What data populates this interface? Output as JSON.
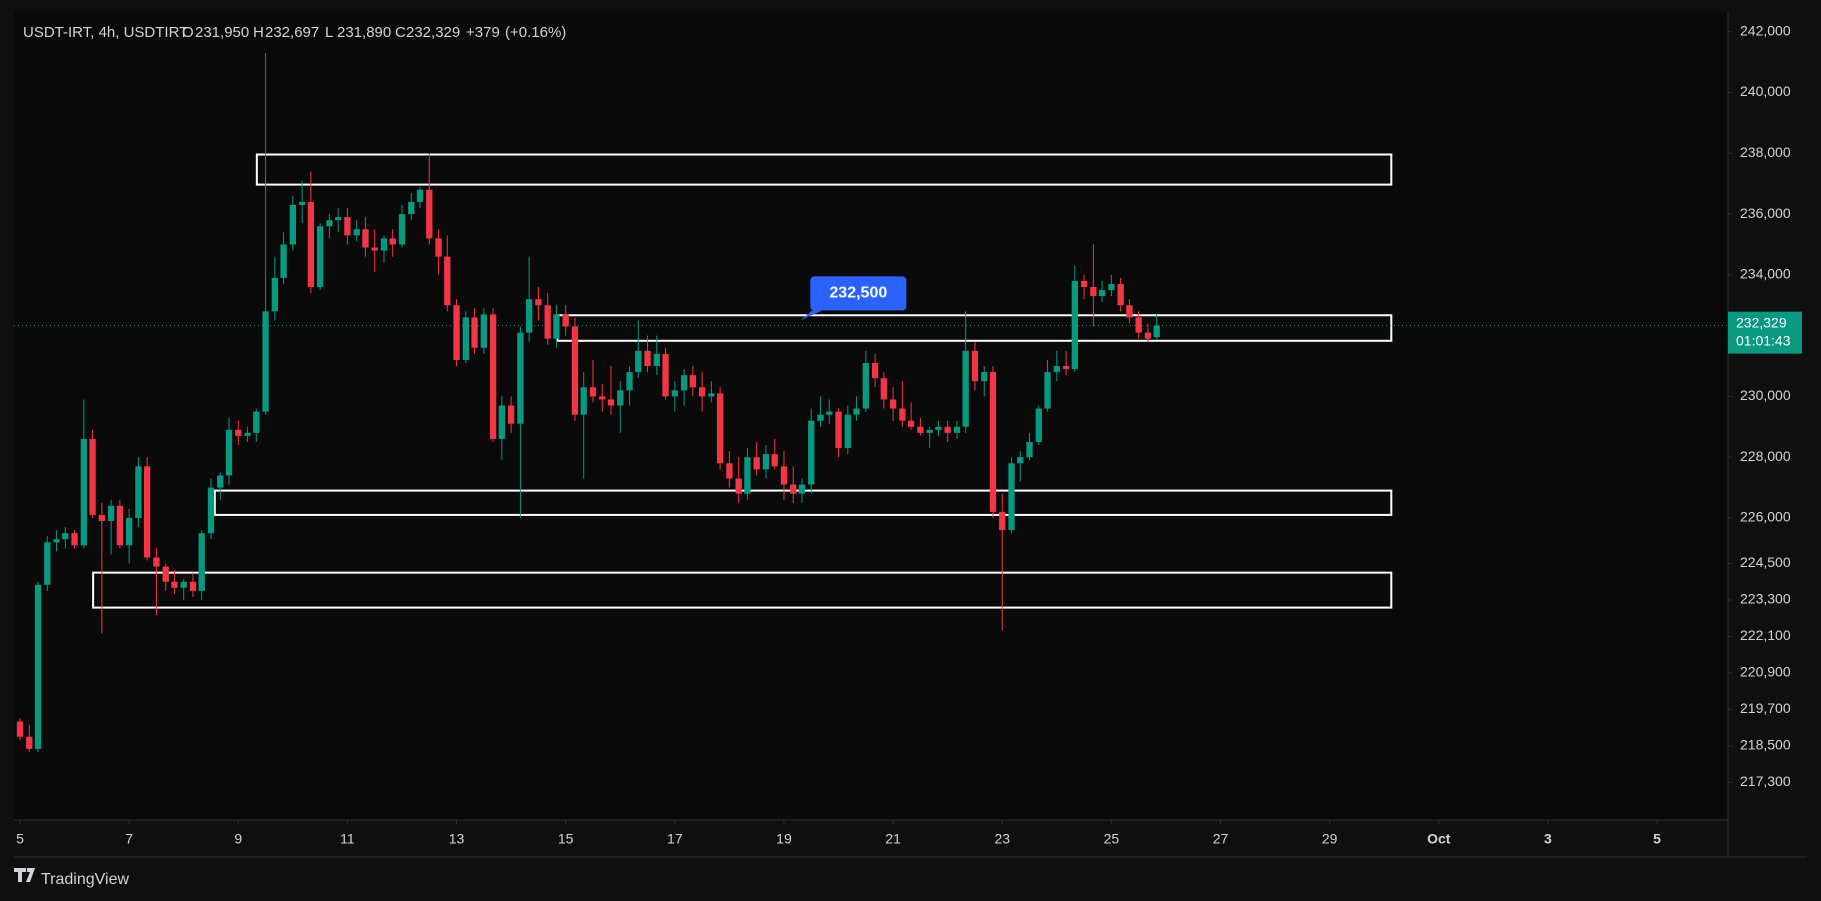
{
  "chart_data": {
    "type": "candlestick",
    "header": {
      "symbol": "USDT-IRT, 4h, USDTIRT",
      "fields": [
        {
          "key": "O",
          "value": 231950,
          "label": "231,950"
        },
        {
          "key": "H",
          "value": 232697,
          "label": "232,697"
        },
        {
          "key": "L",
          "value": 231890,
          "label": "231,890"
        },
        {
          "key": "C",
          "value": 232329,
          "label": "232,329"
        }
      ],
      "change": {
        "value": 379,
        "label": "+379"
      },
      "change_pct": {
        "value": 0.16,
        "label": "(+0.16%)"
      }
    },
    "up_color": "#089981",
    "down_color": "#f23645",
    "x": [
      5,
      5.17,
      5.33,
      5.5,
      5.67,
      5.83,
      6,
      6.17,
      6.33,
      6.5,
      6.67,
      6.83,
      7,
      7.17,
      7.33,
      7.5,
      7.67,
      7.83,
      8,
      8.17,
      8.33,
      8.5,
      8.67,
      8.83,
      9,
      9.17,
      9.33,
      9.5,
      9.67,
      9.83,
      10,
      10.17,
      10.33,
      10.5,
      10.67,
      10.83,
      11,
      11.17,
      11.33,
      11.5,
      11.67,
      11.83,
      12,
      12.17,
      12.33,
      12.5,
      12.67,
      12.83,
      13,
      13.17,
      13.33,
      13.5,
      13.67,
      13.83,
      14,
      14.17,
      14.33,
      14.5,
      14.67,
      14.83,
      15,
      15.17,
      15.33,
      15.5,
      15.67,
      15.83,
      16,
      16.17,
      16.33,
      16.5,
      16.67,
      16.83,
      17,
      17.17,
      17.33,
      17.5,
      17.67,
      17.83,
      18,
      18.17,
      18.33,
      18.5,
      18.67,
      18.83,
      19,
      19.17,
      19.33,
      19.5,
      19.67,
      19.83,
      20,
      20.17,
      20.33,
      20.5,
      20.67,
      20.83,
      21,
      21.17,
      21.33,
      21.5,
      21.67,
      21.83,
      22,
      22.17,
      22.33,
      22.5,
      22.67,
      22.83,
      23,
      23.17,
      23.33,
      23.5,
      23.67,
      23.83,
      24,
      24.17,
      24.33,
      24.5,
      24.67,
      24.83,
      25,
      25.17,
      25.33,
      25.5,
      25.67,
      25.83
    ],
    "open": [
      219300,
      218800,
      218400,
      223800,
      225200,
      225300,
      225500,
      225100,
      228600,
      226100,
      225900,
      226400,
      225100,
      226000,
      227700,
      224700,
      224400,
      223900,
      223700,
      223900,
      223600,
      225500,
      227000,
      227400,
      228900,
      228700,
      228800,
      229500,
      232800,
      233900,
      235000,
      236300,
      236400,
      233600,
      235600,
      235800,
      235900,
      235300,
      235500,
      234900,
      234800,
      235200,
      235000,
      236000,
      236400,
      236800,
      235200,
      234600,
      233000,
      231200,
      232600,
      231600,
      232700,
      228600,
      229700,
      229100,
      232100,
      233200,
      233000,
      231900,
      232700,
      232300,
      229400,
      230300,
      230000,
      229900,
      229700,
      230200,
      230800,
      231500,
      231000,
      231400,
      230000,
      230200,
      230700,
      230300,
      230000,
      230100,
      227800,
      227300,
      226800,
      228000,
      227600,
      228100,
      227700,
      227100,
      226800,
      227100,
      229200,
      229400,
      229500,
      228300,
      229400,
      229600,
      231100,
      230600,
      229900,
      229600,
      229200,
      229000,
      228800,
      228900,
      229000,
      228800,
      229000,
      231500,
      230500,
      230800,
      226200,
      225600,
      227800,
      228000,
      228500,
      229600,
      230800,
      231000,
      230900,
      233800,
      233600,
      233300,
      233500,
      233700,
      233000,
      232600,
      232100,
      231950
    ],
    "high": [
      219400,
      219200,
      223900,
      225400,
      225600,
      225700,
      225600,
      229900,
      228900,
      226500,
      226600,
      226600,
      226300,
      228000,
      228000,
      225000,
      224500,
      224300,
      224000,
      224200,
      225600,
      227300,
      227500,
      229300,
      229200,
      229000,
      229600,
      241300,
      234600,
      235400,
      236600,
      237100,
      237400,
      235700,
      236000,
      236200,
      236200,
      235800,
      235900,
      235500,
      235300,
      235500,
      236300,
      236700,
      236900,
      238000,
      235500,
      235300,
      233200,
      232800,
      232900,
      232900,
      232900,
      230000,
      230000,
      232300,
      234600,
      233600,
      233400,
      233000,
      233000,
      232600,
      230800,
      231200,
      230400,
      231000,
      230500,
      231000,
      232500,
      232000,
      232000,
      231600,
      230500,
      230900,
      231000,
      230800,
      230500,
      230300,
      228200,
      228000,
      228300,
      228500,
      228400,
      228600,
      228200,
      227700,
      227300,
      229600,
      230000,
      229900,
      229600,
      229700,
      230000,
      231500,
      231400,
      230800,
      230300,
      230500,
      229800,
      229300,
      229000,
      229200,
      229200,
      229200,
      232800,
      231800,
      231000,
      231000,
      226800,
      228000,
      228200,
      228800,
      229700,
      231200,
      231500,
      231500,
      234300,
      234000,
      235000,
      233800,
      234000,
      233900,
      233200,
      232800,
      232400,
      232697
    ],
    "low": [
      218700,
      218300,
      218300,
      223600,
      224900,
      225000,
      225000,
      225000,
      226000,
      222200,
      224800,
      225000,
      224500,
      225700,
      224600,
      222800,
      223600,
      223500,
      223300,
      223400,
      223300,
      225300,
      226600,
      227100,
      228400,
      228500,
      228500,
      229400,
      232500,
      233700,
      234800,
      235700,
      233400,
      233500,
      235200,
      235400,
      235000,
      235100,
      234600,
      234100,
      234400,
      234600,
      234900,
      235800,
      236200,
      235000,
      234000,
      232800,
      231000,
      231100,
      231400,
      231400,
      228500,
      227900,
      228800,
      226000,
      231800,
      232500,
      231700,
      231600,
      232000,
      229200,
      227300,
      229800,
      229500,
      229400,
      228800,
      229700,
      230600,
      230800,
      230700,
      229900,
      229500,
      229700,
      230000,
      229500,
      229800,
      227600,
      227000,
      226500,
      226600,
      227400,
      227300,
      227600,
      226600,
      226500,
      226500,
      226800,
      229000,
      229100,
      228000,
      228100,
      229200,
      229500,
      230300,
      229600,
      229200,
      229000,
      228900,
      228700,
      228300,
      228700,
      228500,
      228600,
      228800,
      230200,
      230000,
      226000,
      222300,
      225500,
      227200,
      227900,
      228400,
      229500,
      230500,
      230700,
      230800,
      233200,
      232300,
      233100,
      233300,
      232800,
      232400,
      231900,
      231800,
      231890
    ],
    "close": [
      218800,
      218400,
      223800,
      225200,
      225300,
      225500,
      225100,
      228600,
      226100,
      225900,
      226400,
      225100,
      226000,
      227700,
      224700,
      224400,
      223900,
      223700,
      223900,
      223600,
      225500,
      227000,
      227400,
      228900,
      228700,
      228800,
      229500,
      232800,
      233900,
      235000,
      236300,
      236400,
      233600,
      235600,
      235800,
      235900,
      235300,
      235500,
      234900,
      234800,
      235200,
      235000,
      236000,
      236400,
      236800,
      235200,
      234600,
      233000,
      231200,
      232600,
      231600,
      232700,
      228600,
      229700,
      229100,
      232100,
      233200,
      233000,
      231900,
      232700,
      232300,
      229400,
      230300,
      230000,
      229900,
      229700,
      230200,
      230800,
      231500,
      231000,
      231400,
      230000,
      230200,
      230700,
      230300,
      230000,
      230100,
      227800,
      227300,
      226800,
      228000,
      227600,
      228100,
      227700,
      227100,
      226800,
      227100,
      229200,
      229400,
      229500,
      228300,
      229400,
      229600,
      231100,
      230600,
      229900,
      229600,
      229200,
      229000,
      228800,
      228900,
      229000,
      228800,
      229000,
      231500,
      230500,
      230800,
      226200,
      225600,
      227800,
      228000,
      228500,
      229600,
      230800,
      231000,
      230900,
      233800,
      233600,
      233300,
      233500,
      233700,
      233000,
      232600,
      232100,
      231900,
      232329
    ],
    "xlim": [
      4.89,
      36.3
    ],
    "xticks": [
      5,
      7,
      9,
      11,
      13,
      15,
      17,
      19,
      21,
      23,
      25,
      27,
      29,
      {
        "value": 31,
        "label": "Oct"
      },
      {
        "value": 33,
        "label": "3"
      },
      {
        "value": 35,
        "label": "5"
      }
    ],
    "ylim": [
      216060,
      242650
    ],
    "yticks": [
      {
        "value": 242000,
        "label": "242,000"
      },
      {
        "value": 240000,
        "label": "240,000"
      },
      {
        "value": 238000,
        "label": "238,000"
      },
      {
        "value": 236000,
        "label": "236,000"
      },
      {
        "value": 234000,
        "label": "234,000"
      },
      {
        "value": 230000,
        "label": "230,000"
      },
      {
        "value": 228000,
        "label": "228,000"
      },
      {
        "value": 226000,
        "label": "226,000"
      },
      {
        "value": 224500,
        "label": "224,500"
      },
      {
        "value": 223300,
        "label": "223,300"
      },
      {
        "value": 222100,
        "label": "222,100"
      },
      {
        "value": 220900,
        "label": "220,900"
      },
      {
        "value": 219700,
        "label": "219,700"
      },
      {
        "value": 218500,
        "label": "218,500"
      },
      {
        "value": 217300,
        "label": "217,300"
      }
    ],
    "zones": [
      {
        "start": 9.34,
        "end": 30.13,
        "top": 237960,
        "bottom": 236970
      },
      {
        "start": 14.85,
        "end": 30.13,
        "top": 232670,
        "bottom": 231830
      },
      {
        "start": 8.57,
        "end": 30.13,
        "top": 226900,
        "bottom": 226100
      },
      {
        "start": 6.34,
        "end": 30.13,
        "top": 224200,
        "bottom": 223050
      }
    ],
    "callout": {
      "x": 19.3,
      "value": 232500,
      "label": "232,500"
    },
    "last_price": {
      "value": 232329,
      "label": "232,329"
    },
    "countdown": "01:01:43",
    "brand": "TradingView"
  }
}
